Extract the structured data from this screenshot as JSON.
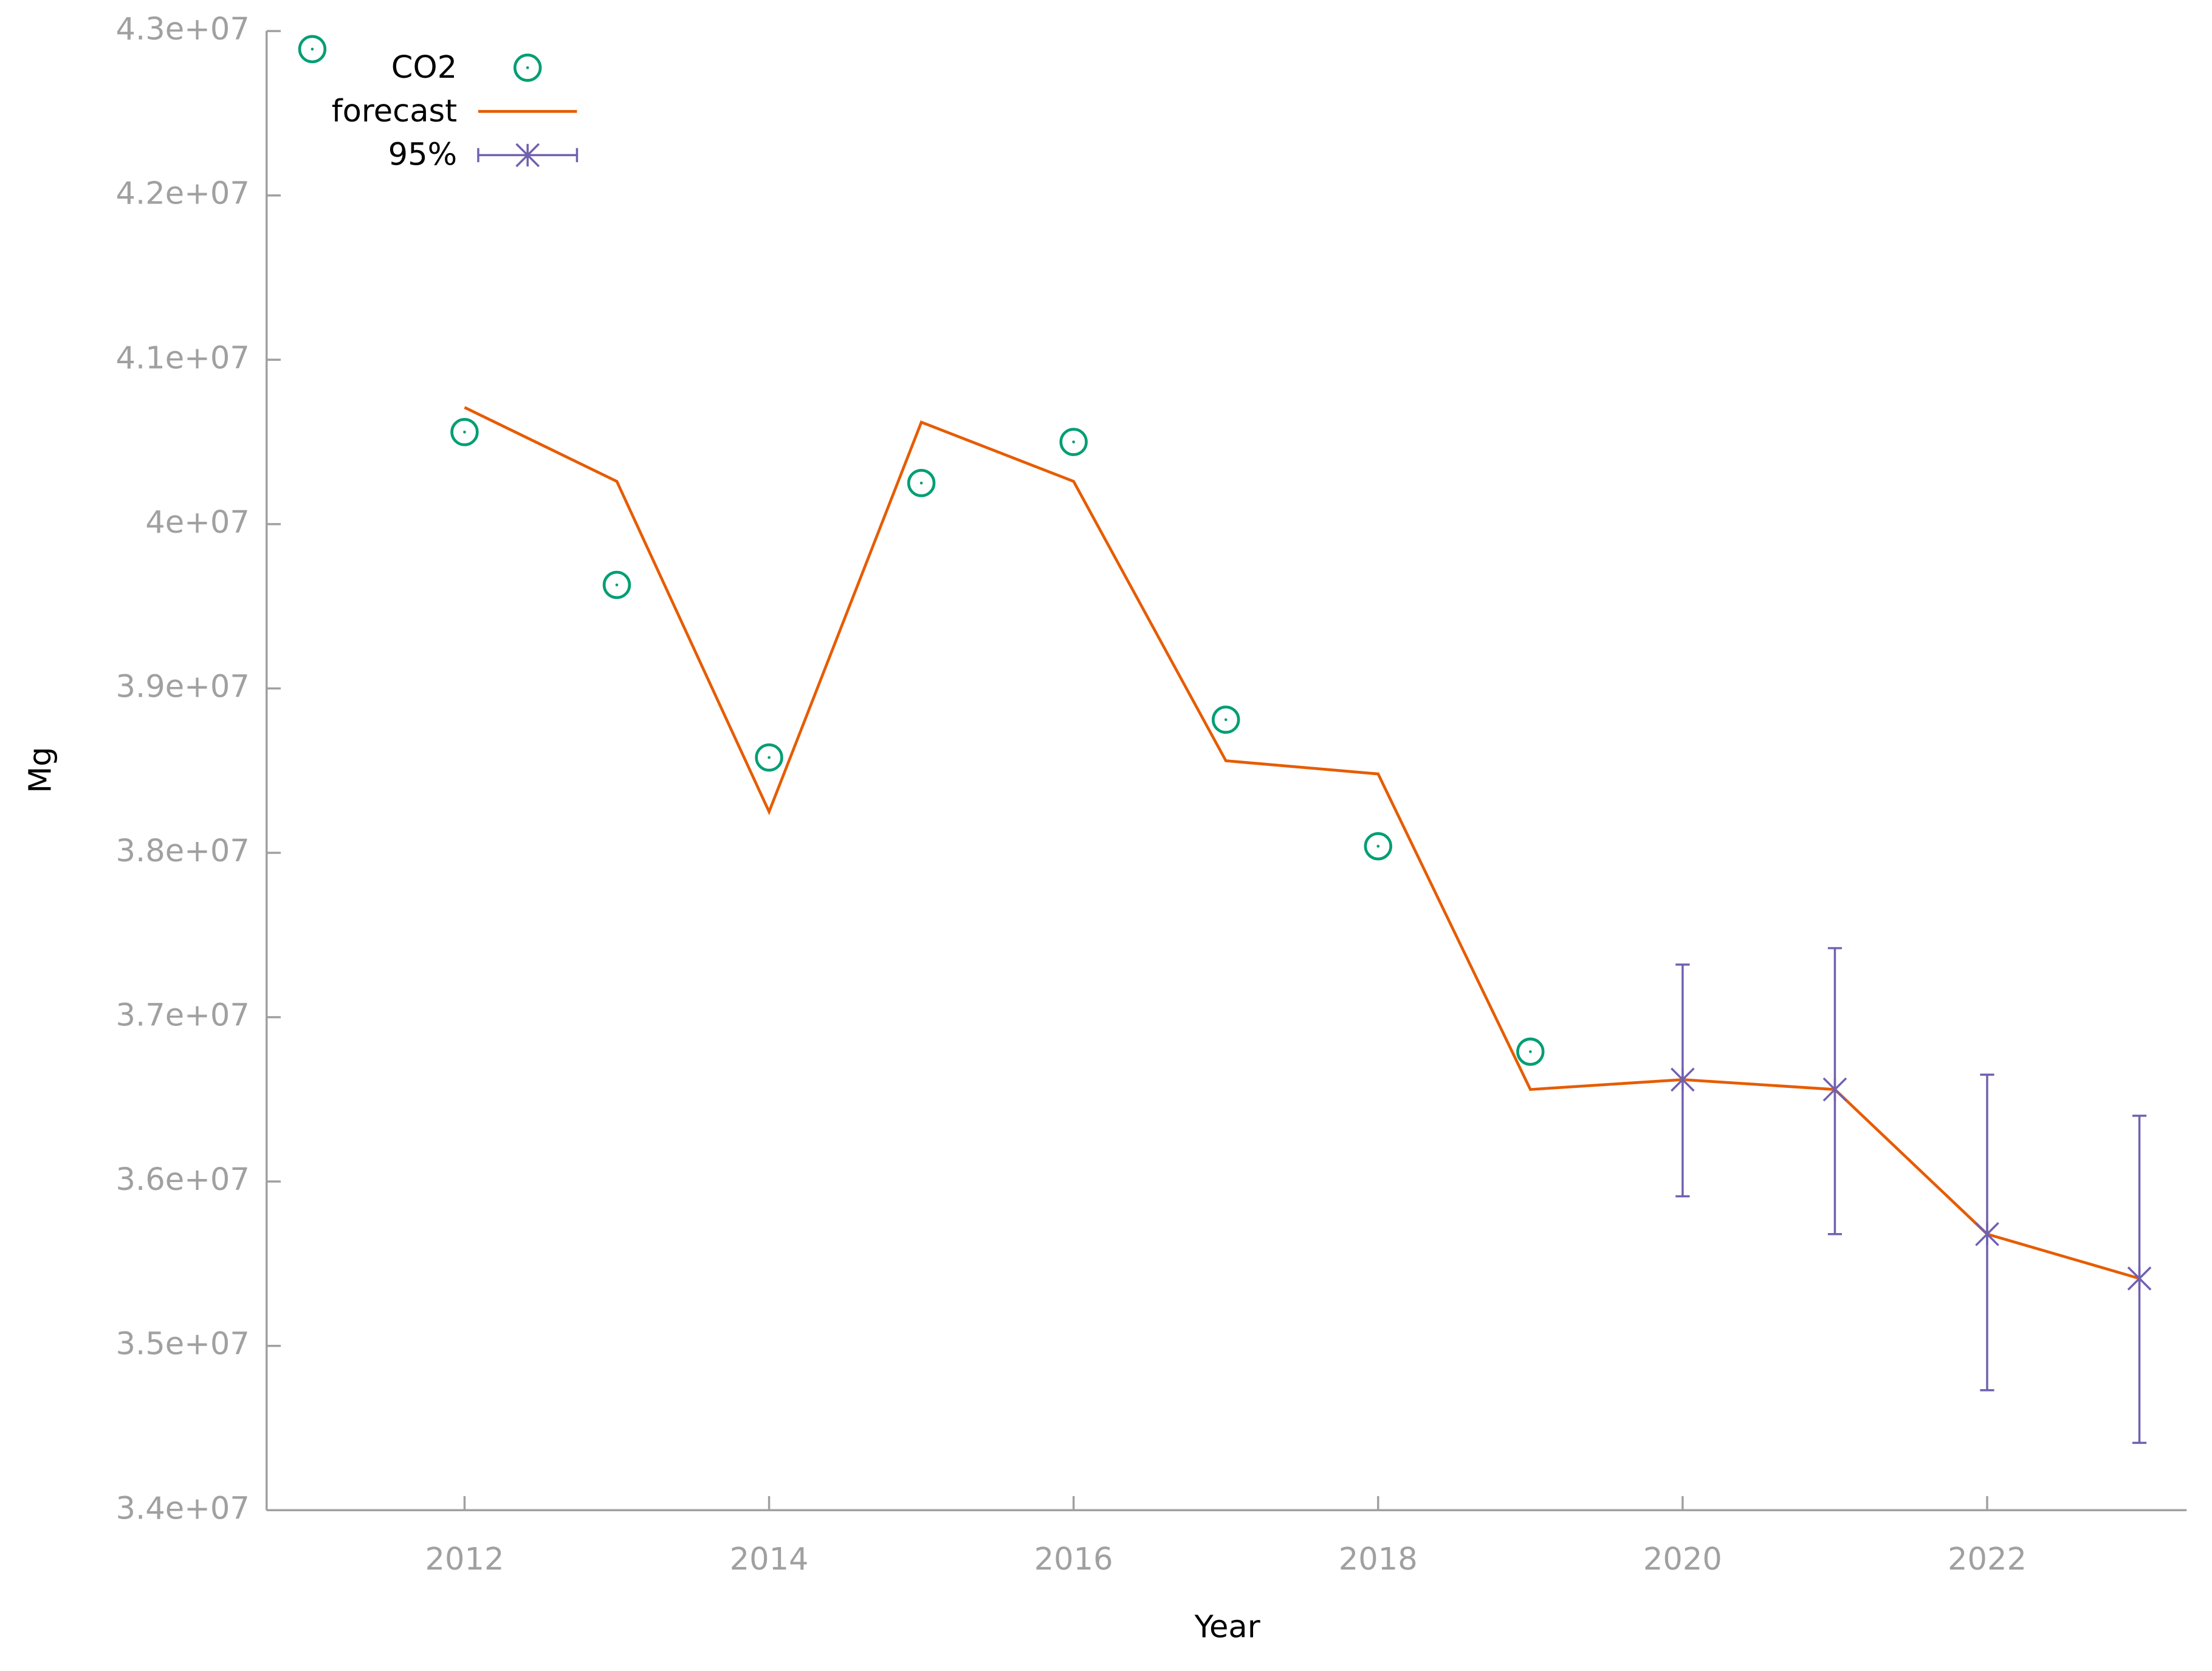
{
  "chart_data": {
    "type": "line",
    "x_label": "Year",
    "y_label": "Mg",
    "xlim": [
      2010.7,
      2023.31
    ],
    "ylim": [
      34000000,
      43000000
    ],
    "xticks": [
      2012,
      2014,
      2016,
      2018,
      2020,
      2022
    ],
    "yticks": [
      {
        "value": 34000000,
        "label": "3.4e+07"
      },
      {
        "value": 35000000,
        "label": "3.5e+07"
      },
      {
        "value": 36000000,
        "label": "3.6e+07"
      },
      {
        "value": 37000000,
        "label": "3.7e+07"
      },
      {
        "value": 38000000,
        "label": "3.8e+07"
      },
      {
        "value": 39000000,
        "label": "3.9e+07"
      },
      {
        "value": 40000000,
        "label": "4e+07"
      },
      {
        "value": 41000000,
        "label": "4.1e+07"
      },
      {
        "value": 42000000,
        "label": "4.2e+07"
      },
      {
        "value": 43000000,
        "label": "4.3e+07"
      }
    ],
    "legend": "upper left",
    "series": [
      {
        "name": "CO2",
        "color": "#009e73",
        "style": "points",
        "x": [
          2011,
          2012,
          2013,
          2014,
          2015,
          2016,
          2017,
          2018,
          2019
        ],
        "values": [
          42890000,
          40560000,
          39630000,
          38580000,
          40250000,
          40500000,
          38810000,
          38040000,
          36790000
        ]
      },
      {
        "name": "forecast",
        "color": "#e65c00",
        "style": "line",
        "x": [
          2012,
          2013,
          2014,
          2015,
          2016,
          2017,
          2018,
          2019,
          2020,
          2021,
          2022,
          2023
        ],
        "values": [
          40710000,
          40260000,
          38250000,
          40620000,
          40260000,
          38560000,
          38480000,
          36560000,
          36620000,
          36560000,
          35680000,
          35410000
        ]
      },
      {
        "name": "95%",
        "color": "#7060b0",
        "style": "errorbars",
        "x": [
          2020,
          2021,
          2022,
          2023
        ],
        "values": [
          36620000,
          36560000,
          35680000,
          35410000
        ],
        "low": [
          35910000,
          35680000,
          34730000,
          34410000
        ],
        "high": [
          37320000,
          37420000,
          36650000,
          36400000
        ]
      }
    ]
  }
}
